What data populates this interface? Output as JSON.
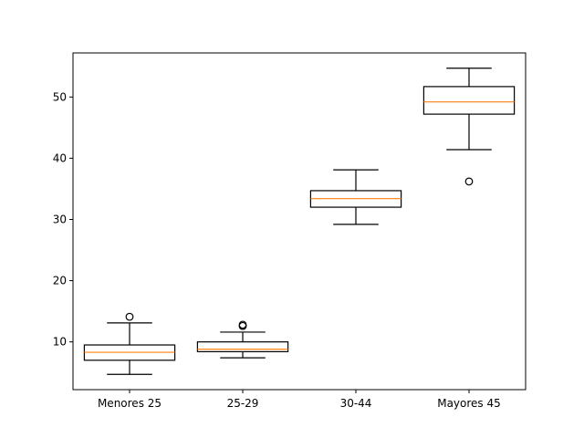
{
  "chart_data": {
    "type": "box",
    "categories": [
      "Menores 25",
      "25-29",
      "30-44",
      "Mayores 45"
    ],
    "boxes": [
      {
        "whisker_low": 4.7,
        "q1": 7.0,
        "median": 8.3,
        "q3": 9.5,
        "whisker_high": 13.1,
        "outliers": [
          14.1
        ]
      },
      {
        "whisker_low": 7.4,
        "q1": 8.4,
        "median": 8.8,
        "q3": 10.0,
        "whisker_high": 11.6,
        "outliers": [
          12.6,
          12.8
        ]
      },
      {
        "whisker_low": 29.2,
        "q1": 32.0,
        "median": 33.4,
        "q3": 34.7,
        "whisker_high": 38.1,
        "outliers": []
      },
      {
        "whisker_low": 41.4,
        "q1": 47.2,
        "median": 49.2,
        "q3": 51.7,
        "whisker_high": 54.7,
        "outliers": [
          36.2
        ]
      }
    ],
    "ylim": [
      2.2,
      57.2
    ],
    "yticks": [
      10,
      20,
      30,
      40,
      50
    ],
    "grid": false,
    "colors": {
      "box": "#000000",
      "median": "#ff7f0e",
      "outlier": "#000000"
    }
  }
}
